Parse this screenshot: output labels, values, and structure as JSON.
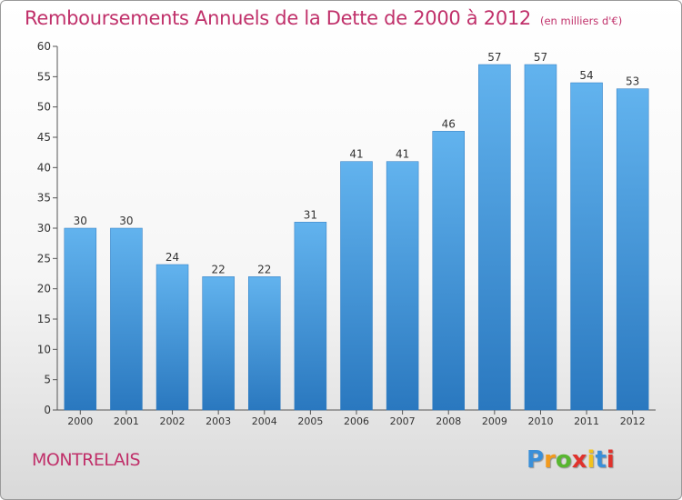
{
  "chart_data": {
    "type": "bar",
    "title": "Remboursements Annuels de la Dette de 2000 à 2012",
    "unit": "(en milliers d'€)",
    "categories": [
      "2000",
      "2001",
      "2002",
      "2003",
      "2004",
      "2005",
      "2006",
      "2007",
      "2008",
      "2009",
      "2010",
      "2011",
      "2012"
    ],
    "values": [
      30,
      30,
      24,
      22,
      22,
      31,
      41,
      41,
      46,
      57,
      57,
      54,
      53
    ],
    "ylim": [
      0,
      60
    ],
    "yticks": [
      0,
      5,
      10,
      15,
      20,
      25,
      30,
      35,
      40,
      45,
      50,
      55,
      60
    ],
    "grid": false,
    "bar_color": "#4a9de0"
  },
  "place": "MONTRELAIS",
  "brand": {
    "letters": [
      "P",
      "r",
      "o",
      "x",
      "i",
      "t",
      "i"
    ],
    "colors": [
      "#3a8fd8",
      "#f29a1d",
      "#58b630",
      "#e0322c",
      "#f2c21d",
      "#3a8fd8",
      "#e0322c"
    ]
  }
}
